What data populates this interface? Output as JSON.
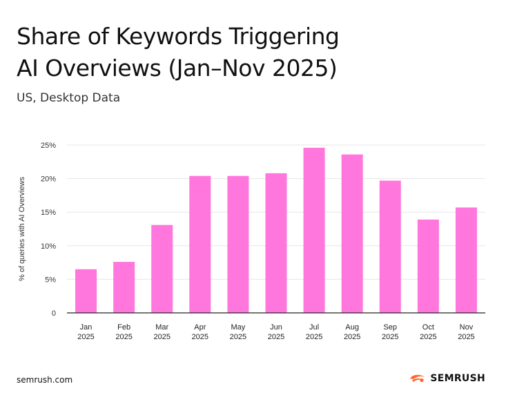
{
  "title_line1": "Share of Keywords Triggering",
  "title_line2": "AI Overviews (Jan–Nov 2025)",
  "subtitle": "US, Desktop Data",
  "footer": {
    "url": "semrush.com",
    "logo_text": "SEMRUSH",
    "logo_icon": "semrush-fire-icon"
  },
  "colors": {
    "bar": "#ff77dd",
    "grid": "#e6e6e6",
    "axis": "#222222",
    "logo_accent": "#ff642d"
  },
  "chart_data": {
    "type": "bar",
    "title": "Share of Keywords Triggering AI Overviews (Jan–Nov 2025)",
    "subtitle": "US, Desktop Data",
    "xlabel": "",
    "ylabel": "% of queries with AI Overviews",
    "categories": [
      [
        "Jan",
        "2025"
      ],
      [
        "Feb",
        "2025"
      ],
      [
        "Mar",
        "2025"
      ],
      [
        "Apr",
        "2025"
      ],
      [
        "May",
        "2025"
      ],
      [
        "Jun",
        "2025"
      ],
      [
        "Jul",
        "2025"
      ],
      [
        "Aug",
        "2025"
      ],
      [
        "Sep",
        "2025"
      ],
      [
        "Oct",
        "2025"
      ],
      [
        "Nov",
        "2025"
      ]
    ],
    "values": [
      6.5,
      7.6,
      13.1,
      20.4,
      20.4,
      20.8,
      24.6,
      23.6,
      19.7,
      13.9,
      15.7
    ],
    "unit": "%",
    "ylim": [
      0,
      25
    ],
    "yticks": [
      0,
      5,
      10,
      15,
      20,
      25
    ],
    "ytick_labels": [
      "0",
      "5%",
      "10%",
      "15%",
      "20%",
      "25%"
    ],
    "grid": true,
    "legend": "none"
  }
}
